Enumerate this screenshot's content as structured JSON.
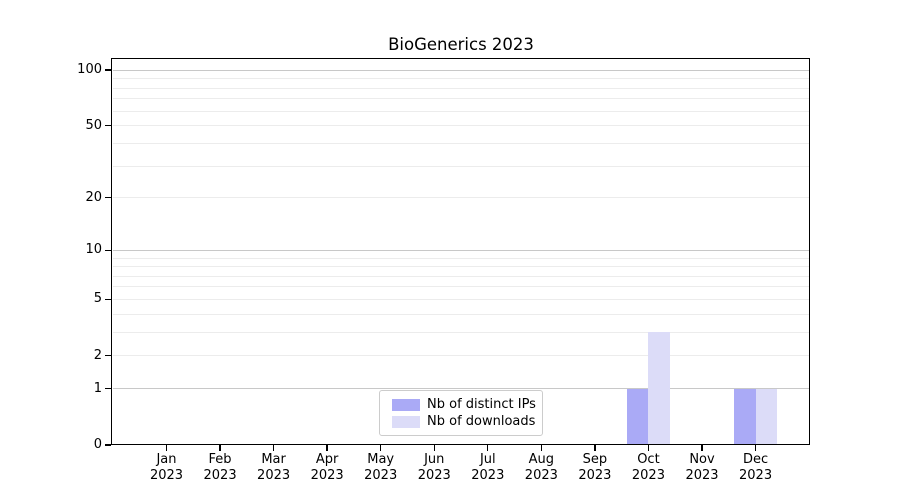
{
  "chart_data": {
    "type": "bar",
    "title": "BioGenerics 2023",
    "categories": [
      {
        "month": "Jan",
        "year": "2023"
      },
      {
        "month": "Feb",
        "year": "2023"
      },
      {
        "month": "Mar",
        "year": "2023"
      },
      {
        "month": "Apr",
        "year": "2023"
      },
      {
        "month": "May",
        "year": "2023"
      },
      {
        "month": "Jun",
        "year": "2023"
      },
      {
        "month": "Jul",
        "year": "2023"
      },
      {
        "month": "Aug",
        "year": "2023"
      },
      {
        "month": "Sep",
        "year": "2023"
      },
      {
        "month": "Oct",
        "year": "2023"
      },
      {
        "month": "Nov",
        "year": "2023"
      },
      {
        "month": "Dec",
        "year": "2023"
      }
    ],
    "series": [
      {
        "name": "Nb of distinct IPs",
        "color": "#aaaaf6",
        "values": [
          0,
          0,
          0,
          0,
          0,
          0,
          0,
          0,
          0,
          1,
          0,
          1
        ]
      },
      {
        "name": "Nb of downloads",
        "color": "#dcdcf8",
        "values": [
          0,
          0,
          0,
          0,
          0,
          0,
          0,
          0,
          0,
          3,
          0,
          1
        ]
      }
    ],
    "y_axis": {
      "scale": "log1p",
      "tick_values": [
        0,
        1,
        2,
        5,
        10,
        20,
        50,
        100
      ],
      "tick_labels": [
        "0",
        "1",
        "2",
        "5",
        "10",
        "20",
        "50",
        "100"
      ],
      "major_gridline_values": [
        1,
        10,
        100
      ],
      "minor_gridline_values": [
        2,
        3,
        4,
        5,
        6,
        7,
        8,
        9,
        20,
        30,
        40,
        50,
        60,
        70,
        80,
        90
      ],
      "ylim_bottom": 0,
      "ylim_top": 110
    },
    "x_axis": {
      "label_line_count": 2
    },
    "legend": {
      "position": "lower center",
      "items": [
        "Nb of distinct IPs",
        "Nb of downloads"
      ]
    },
    "grid": true,
    "colors": {
      "background": "#ffffff",
      "axis": "#000000",
      "major_grid": "#c8c8c8",
      "minor_grid": "#ececec",
      "legend_border": "#cccccc",
      "text": "#000000"
    }
  }
}
